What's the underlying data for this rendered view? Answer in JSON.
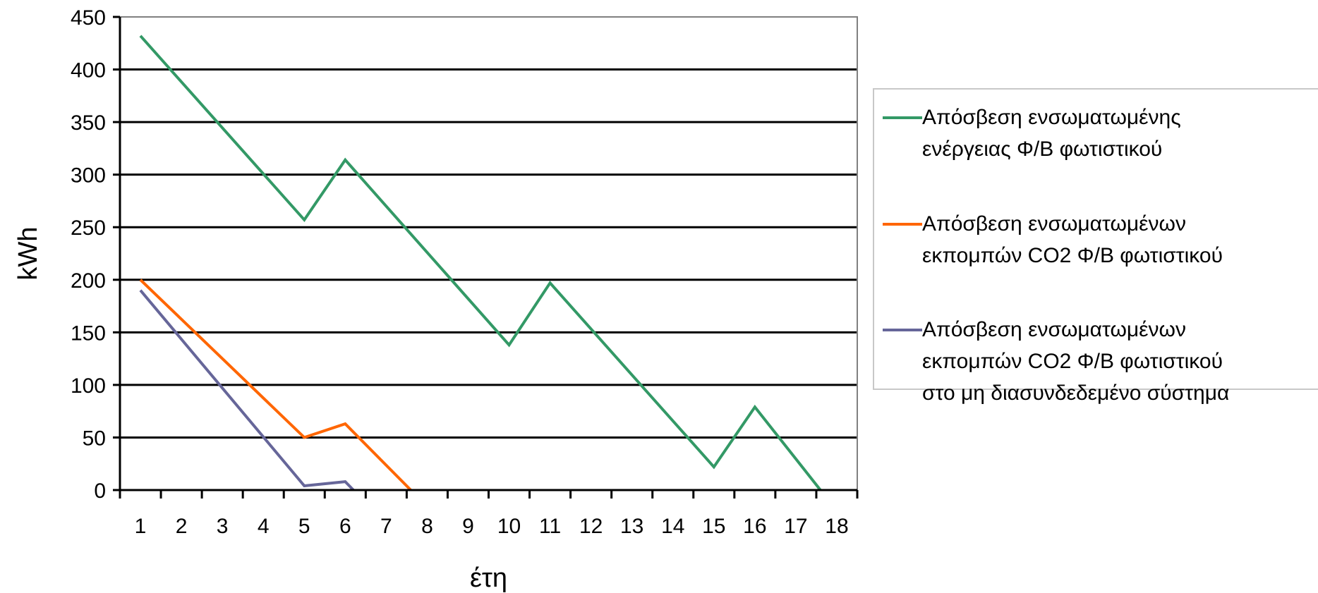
{
  "chart_data": {
    "type": "line",
    "xlabel": "έτη",
    "ylabel": "kWh",
    "categories": [
      "1",
      "2",
      "3",
      "4",
      "5",
      "6",
      "7",
      "8",
      "9",
      "10",
      "11",
      "12",
      "13",
      "14",
      "15",
      "16",
      "17",
      "18"
    ],
    "yticks": [
      "0",
      "50",
      "100",
      "150",
      "200",
      "250",
      "300",
      "350",
      "400",
      "450"
    ],
    "ylim": [
      0,
      450
    ],
    "grid": true,
    "legend_position": "right",
    "series": [
      {
        "name": [
          "Απόσβεση ενσωματωμένης",
          "ενέργειας Φ/Β φωτιστικού"
        ],
        "color": "#339966",
        "x": [
          1,
          5,
          6,
          10,
          11,
          15,
          16,
          17.6
        ],
        "y": [
          432,
          257,
          314,
          138,
          197,
          22,
          79,
          0
        ]
      },
      {
        "name": [
          "Απόσβεση ενσωματωμένων",
          "εκπομπών CO2 Φ/Β φωτιστικού"
        ],
        "color": "#ff6600",
        "x": [
          1,
          5,
          6,
          7.6
        ],
        "y": [
          200,
          50,
          63,
          0
        ]
      },
      {
        "name": [
          "Απόσβεση ενσωματωμένων",
          "εκπομπών CO2 Φ/Β φωτιστικού",
          "στο μη διασυνδεδεμένο σύστημα"
        ],
        "color": "#666699",
        "x": [
          1,
          5,
          6,
          6.2
        ],
        "y": [
          190,
          4,
          8,
          0
        ]
      }
    ]
  }
}
